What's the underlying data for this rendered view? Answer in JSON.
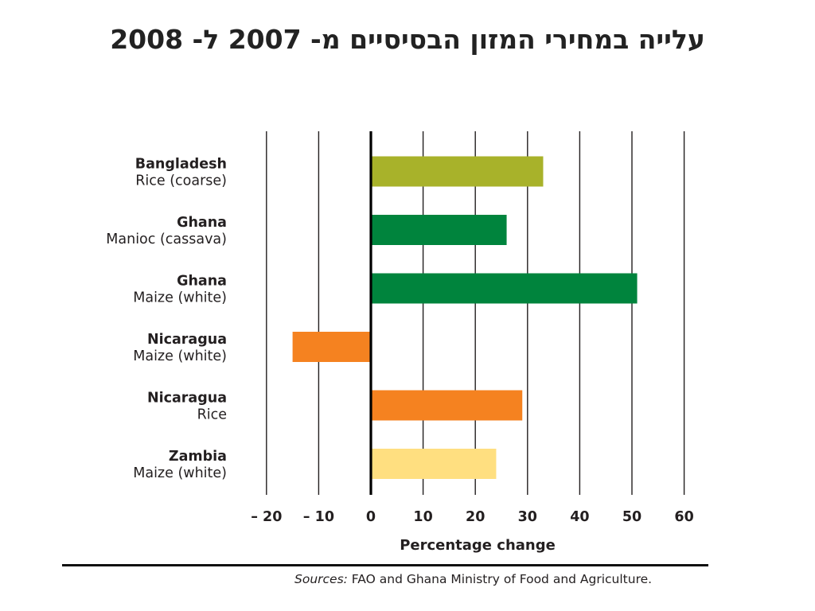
{
  "slide": {
    "title": "עלייה במחירי המזון הבסיסיים מ- 2007 ל- 2008"
  },
  "chart_data": {
    "type": "bar",
    "orientation": "horizontal",
    "title": "",
    "xlabel": "Percentage change",
    "ylabel": "",
    "xlim": [
      -20,
      60
    ],
    "ticks": [
      -20,
      -10,
      0,
      10,
      20,
      30,
      40,
      50,
      60
    ],
    "tick_labels": [
      "– 20",
      "– 10",
      "0",
      "10",
      "20",
      "30",
      "40",
      "50",
      "60"
    ],
    "grid": "vertical",
    "categories": [
      {
        "country": "Bangladesh",
        "crop": "Rice (coarse)",
        "value": 33,
        "color": "#a8b22a"
      },
      {
        "country": "Ghana",
        "crop": "Manioc (cassava)",
        "value": 26,
        "color": "#00843d"
      },
      {
        "country": "Ghana",
        "crop": "Maize (white)",
        "value": 51,
        "color": "#00843d"
      },
      {
        "country": "Nicaragua",
        "crop": "Maize (white)",
        "value": -15,
        "color": "#f58220"
      },
      {
        "country": "Nicaragua",
        "crop": "Rice",
        "value": 29,
        "color": "#f58220"
      },
      {
        "country": "Zambia",
        "crop": "Maize (white)",
        "value": 24,
        "color": "#ffdf80"
      }
    ]
  },
  "source": {
    "label": "Sources:",
    "text": " FAO and Ghana Ministry of Food and  Agriculture."
  }
}
